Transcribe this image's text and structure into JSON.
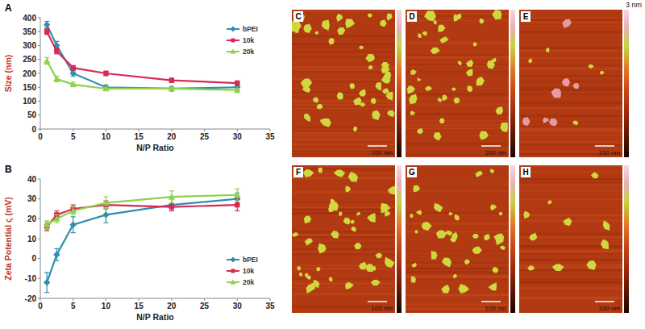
{
  "chart_data": [
    {
      "type": "line",
      "title": "A",
      "x_label": "N/P Ratio",
      "y_label": "Size (nm)",
      "x": [
        1,
        2.5,
        5,
        10,
        20,
        30
      ],
      "xlim": [
        0,
        35
      ],
      "xticks": [
        0,
        5,
        10,
        15,
        20,
        25,
        30,
        35
      ],
      "ylim": [
        0,
        400
      ],
      "yticks": [
        0,
        50,
        100,
        150,
        200,
        250,
        300,
        350,
        400
      ],
      "grid": false,
      "legend": "upper right",
      "series": [
        {
          "name": "bPEI",
          "color": "#2f8fae",
          "marker": "diamond",
          "values": [
            375,
            300,
            200,
            150,
            145,
            150
          ],
          "errors": [
            12,
            15,
            10,
            8,
            8,
            8
          ]
        },
        {
          "name": "10k",
          "color": "#d62a55",
          "marker": "square",
          "values": [
            350,
            280,
            220,
            200,
            175,
            165
          ],
          "errors": [
            10,
            10,
            8,
            8,
            8,
            8
          ]
        },
        {
          "name": "20k",
          "color": "#8ed14c",
          "marker": "triangle",
          "values": [
            245,
            180,
            160,
            145,
            145,
            140
          ],
          "errors": [
            12,
            10,
            8,
            6,
            6,
            6
          ]
        }
      ]
    },
    {
      "type": "line",
      "title": "B",
      "x_label": "N/P Ratio",
      "y_label": "Zeta Potential ς (mV)",
      "x": [
        1,
        2.5,
        5,
        10,
        20,
        30
      ],
      "xlim": [
        0,
        35
      ],
      "xticks": [
        0,
        5,
        10,
        15,
        20,
        25,
        30,
        35
      ],
      "ylim": [
        -20,
        40
      ],
      "yticks": [
        -20,
        -10,
        0,
        10,
        20,
        30,
        40
      ],
      "grid": false,
      "legend": "lower right",
      "series": [
        {
          "name": "bPEI",
          "color": "#2f8fae",
          "marker": "diamond",
          "values": [
            -12,
            2,
            17,
            22,
            27,
            30
          ],
          "errors": [
            5,
            3,
            4,
            4,
            3,
            3
          ]
        },
        {
          "name": "10k",
          "color": "#d62a55",
          "marker": "square",
          "values": [
            16,
            22,
            25,
            27,
            26,
            27
          ],
          "errors": [
            2,
            2,
            2,
            2,
            2,
            3
          ]
        },
        {
          "name": "20k",
          "color": "#8ed14c",
          "marker": "triangle",
          "values": [
            17,
            20,
            24,
            28,
            31,
            32
          ],
          "errors": [
            2,
            2,
            2,
            3,
            3,
            3
          ]
        }
      ]
    }
  ],
  "afm_images": {
    "color_bar_label": "3 nm",
    "panels": [
      {
        "label": "C",
        "scale_bar": "100 nm"
      },
      {
        "label": "D",
        "scale_bar": "100 nm"
      },
      {
        "label": "E",
        "scale_bar": "100 nm"
      },
      {
        "label": "F",
        "scale_bar": "100 nm"
      },
      {
        "label": "G",
        "scale_bar": "100 nm"
      },
      {
        "label": "H",
        "scale_bar": "100 nm"
      }
    ]
  }
}
